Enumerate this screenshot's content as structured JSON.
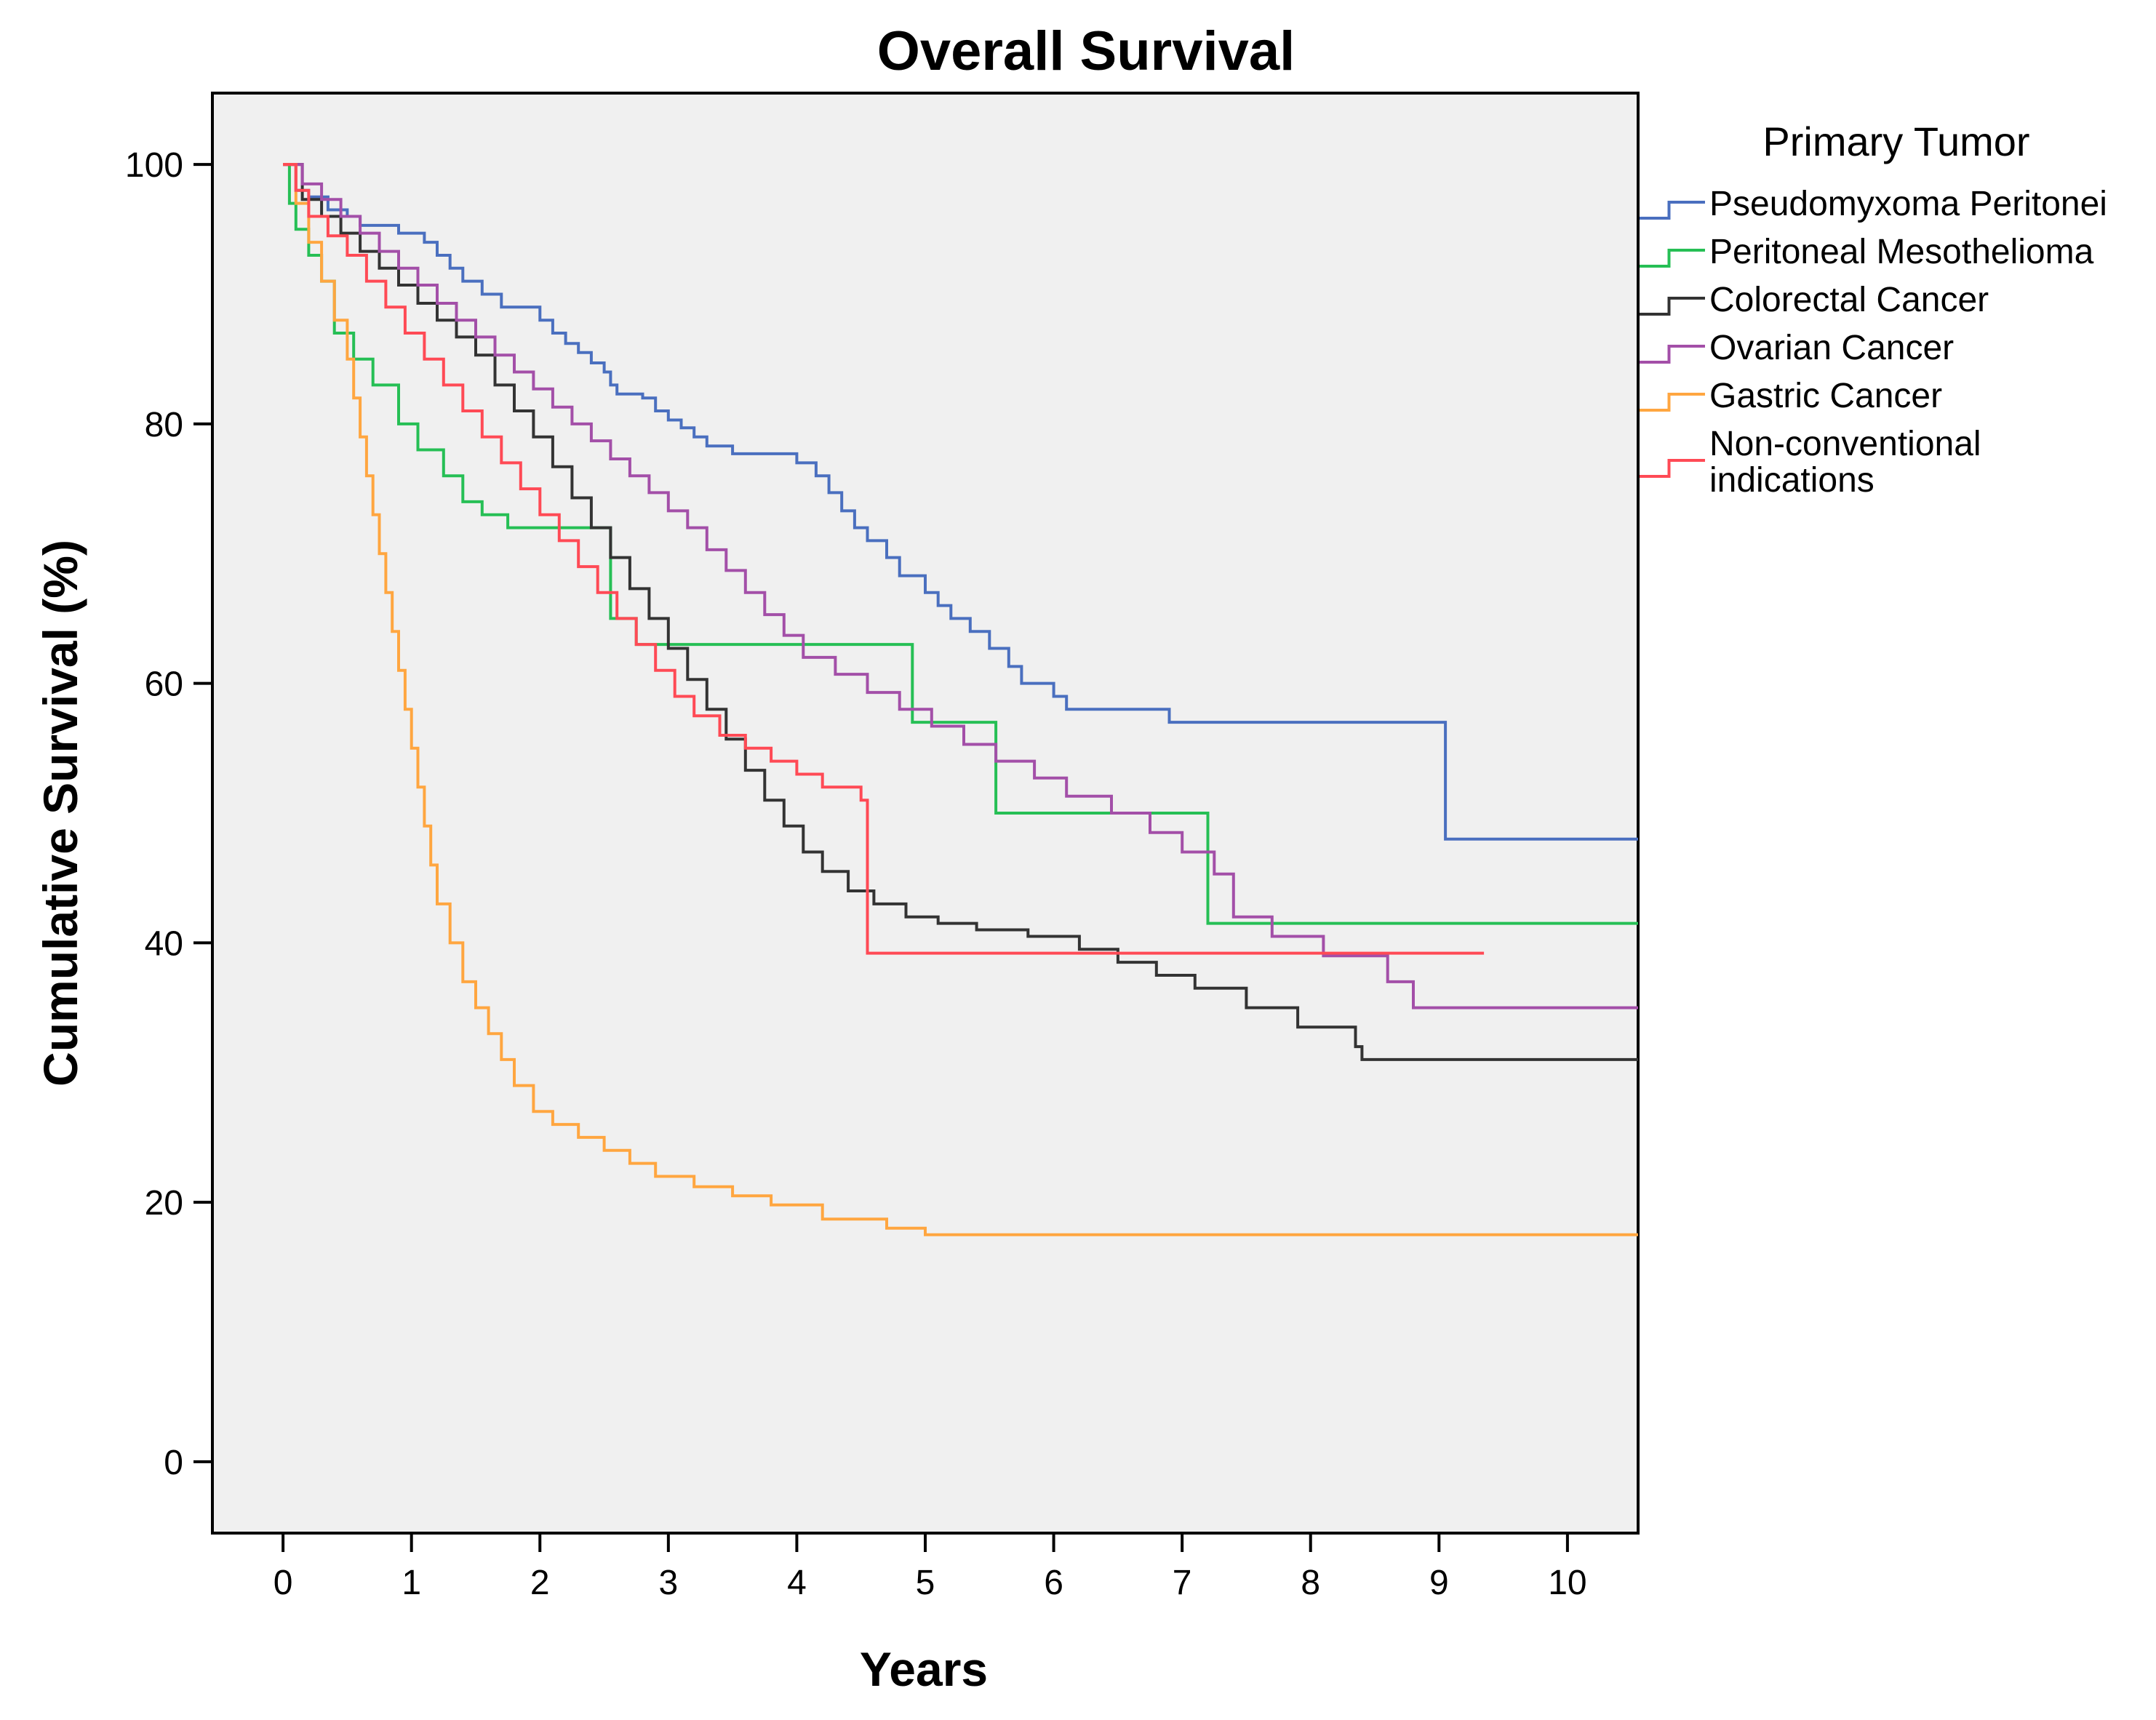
{
  "chart_data": {
    "type": "line",
    "subtype": "kaplan-meier-step",
    "title": "Overall Survival",
    "xlabel": "Years",
    "ylabel": "Cumulative Survival (%)",
    "xlim": [
      -0.55,
      10.55
    ],
    "ylim": [
      -5.5,
      105.5
    ],
    "xticks": [
      0,
      1,
      2,
      3,
      4,
      5,
      6,
      7,
      8,
      9,
      10
    ],
    "yticks": [
      0,
      20,
      40,
      60,
      80,
      100
    ],
    "grid": false,
    "plot_background": "#f0f0f0",
    "legend": {
      "title": "Primary Tumor",
      "position": "right-top"
    },
    "series": [
      {
        "name": "Pseudomyxoma Peritonei",
        "color": "#4a6fbf",
        "points": [
          [
            0,
            100
          ],
          [
            0.1,
            98
          ],
          [
            0.2,
            97.5
          ],
          [
            0.35,
            96.5
          ],
          [
            0.5,
            96
          ],
          [
            0.6,
            95.3
          ],
          [
            0.9,
            94.7
          ],
          [
            1.1,
            94
          ],
          [
            1.2,
            93
          ],
          [
            1.3,
            92
          ],
          [
            1.4,
            91
          ],
          [
            1.55,
            90
          ],
          [
            1.7,
            89
          ],
          [
            2.0,
            88
          ],
          [
            2.1,
            87
          ],
          [
            2.2,
            86.2
          ],
          [
            2.3,
            85.5
          ],
          [
            2.4,
            84.7
          ],
          [
            2.5,
            84
          ],
          [
            2.55,
            83
          ],
          [
            2.6,
            82.3
          ],
          [
            2.8,
            82
          ],
          [
            2.9,
            81
          ],
          [
            3.0,
            80.3
          ],
          [
            3.1,
            79.7
          ],
          [
            3.2,
            79
          ],
          [
            3.3,
            78.3
          ],
          [
            3.5,
            77.7
          ],
          [
            4.0,
            77
          ],
          [
            4.15,
            76
          ],
          [
            4.25,
            74.7
          ],
          [
            4.35,
            73.3
          ],
          [
            4.45,
            72
          ],
          [
            4.55,
            71
          ],
          [
            4.7,
            69.7
          ],
          [
            4.8,
            68.3
          ],
          [
            5.0,
            67
          ],
          [
            5.1,
            66
          ],
          [
            5.2,
            65
          ],
          [
            5.35,
            64
          ],
          [
            5.5,
            62.7
          ],
          [
            5.65,
            61.3
          ],
          [
            5.75,
            60
          ],
          [
            6.0,
            59
          ],
          [
            6.1,
            58
          ],
          [
            6.5,
            58
          ],
          [
            6.8,
            58
          ],
          [
            6.9,
            57
          ],
          [
            8.0,
            57
          ],
          [
            9.0,
            57
          ],
          [
            9.05,
            48
          ],
          [
            10.55,
            48
          ]
        ]
      },
      {
        "name": "Peritoneal Mesothelioma",
        "color": "#26bf55",
        "points": [
          [
            0,
            100
          ],
          [
            0.05,
            97
          ],
          [
            0.1,
            95
          ],
          [
            0.2,
            93
          ],
          [
            0.3,
            91
          ],
          [
            0.4,
            87
          ],
          [
            0.55,
            85
          ],
          [
            0.7,
            83
          ],
          [
            0.9,
            80
          ],
          [
            1.05,
            78
          ],
          [
            1.25,
            76
          ],
          [
            1.4,
            74
          ],
          [
            1.55,
            73
          ],
          [
            1.75,
            72
          ],
          [
            2.5,
            72
          ],
          [
            2.55,
            65
          ],
          [
            2.75,
            63
          ],
          [
            4.85,
            63
          ],
          [
            4.9,
            57
          ],
          [
            5.5,
            57
          ],
          [
            5.55,
            50
          ],
          [
            7.15,
            50
          ],
          [
            7.2,
            41.5
          ],
          [
            10.55,
            41.5
          ]
        ]
      },
      {
        "name": "Colorectal Cancer",
        "color": "#333333",
        "points": [
          [
            0,
            100
          ],
          [
            0.15,
            97.3
          ],
          [
            0.3,
            96
          ],
          [
            0.45,
            94.7
          ],
          [
            0.6,
            93.3
          ],
          [
            0.75,
            92
          ],
          [
            0.9,
            90.7
          ],
          [
            1.05,
            89.3
          ],
          [
            1.2,
            88
          ],
          [
            1.35,
            86.7
          ],
          [
            1.5,
            85.3
          ],
          [
            1.65,
            83
          ],
          [
            1.8,
            81
          ],
          [
            1.95,
            79
          ],
          [
            2.1,
            76.7
          ],
          [
            2.25,
            74.3
          ],
          [
            2.4,
            72
          ],
          [
            2.55,
            69.7
          ],
          [
            2.7,
            67.3
          ],
          [
            2.85,
            65
          ],
          [
            3.0,
            62.7
          ],
          [
            3.15,
            60.3
          ],
          [
            3.3,
            58
          ],
          [
            3.45,
            55.7
          ],
          [
            3.6,
            53.3
          ],
          [
            3.75,
            51
          ],
          [
            3.9,
            49
          ],
          [
            4.05,
            47
          ],
          [
            4.2,
            45.5
          ],
          [
            4.4,
            44
          ],
          [
            4.6,
            43
          ],
          [
            4.85,
            42
          ],
          [
            5.1,
            41.5
          ],
          [
            5.4,
            41
          ],
          [
            5.8,
            40.5
          ],
          [
            6.2,
            39.5
          ],
          [
            6.5,
            38.5
          ],
          [
            6.8,
            37.5
          ],
          [
            7.1,
            36.5
          ],
          [
            7.5,
            35
          ],
          [
            7.9,
            33.5
          ],
          [
            8.35,
            32
          ],
          [
            8.4,
            31
          ],
          [
            10.55,
            31
          ]
        ]
      },
      {
        "name": "Ovarian Cancer",
        "color": "#a34fa8",
        "points": [
          [
            0,
            100
          ],
          [
            0.15,
            98.5
          ],
          [
            0.3,
            97.3
          ],
          [
            0.45,
            96
          ],
          [
            0.6,
            94.7
          ],
          [
            0.75,
            93.3
          ],
          [
            0.9,
            92
          ],
          [
            1.05,
            90.7
          ],
          [
            1.2,
            89.3
          ],
          [
            1.35,
            88
          ],
          [
            1.5,
            86.7
          ],
          [
            1.65,
            85.3
          ],
          [
            1.8,
            84
          ],
          [
            1.95,
            82.7
          ],
          [
            2.1,
            81.3
          ],
          [
            2.25,
            80
          ],
          [
            2.4,
            78.7
          ],
          [
            2.55,
            77.3
          ],
          [
            2.7,
            76
          ],
          [
            2.85,
            74.7
          ],
          [
            3.0,
            73.3
          ],
          [
            3.15,
            72
          ],
          [
            3.3,
            70.3
          ],
          [
            3.45,
            68.7
          ],
          [
            3.6,
            67
          ],
          [
            3.75,
            65.3
          ],
          [
            3.9,
            63.7
          ],
          [
            4.05,
            62
          ],
          [
            4.3,
            60.7
          ],
          [
            4.55,
            59.3
          ],
          [
            4.8,
            58
          ],
          [
            5.05,
            56.7
          ],
          [
            5.3,
            55.3
          ],
          [
            5.55,
            54
          ],
          [
            5.85,
            52.7
          ],
          [
            6.1,
            51.3
          ],
          [
            6.45,
            50
          ],
          [
            6.75,
            48.5
          ],
          [
            7.0,
            47
          ],
          [
            7.25,
            45.3
          ],
          [
            7.4,
            42
          ],
          [
            7.7,
            40.5
          ],
          [
            8.1,
            39
          ],
          [
            8.6,
            37
          ],
          [
            8.8,
            35
          ],
          [
            10.55,
            35
          ]
        ]
      },
      {
        "name": "Gastric Cancer",
        "color": "#ffa640",
        "points": [
          [
            0,
            100
          ],
          [
            0.1,
            97
          ],
          [
            0.2,
            94
          ],
          [
            0.3,
            91
          ],
          [
            0.4,
            88
          ],
          [
            0.5,
            85
          ],
          [
            0.55,
            82
          ],
          [
            0.6,
            79
          ],
          [
            0.65,
            76
          ],
          [
            0.7,
            73
          ],
          [
            0.75,
            70
          ],
          [
            0.8,
            67
          ],
          [
            0.85,
            64
          ],
          [
            0.9,
            61
          ],
          [
            0.95,
            58
          ],
          [
            1.0,
            55
          ],
          [
            1.05,
            52
          ],
          [
            1.1,
            49
          ],
          [
            1.15,
            46
          ],
          [
            1.2,
            43
          ],
          [
            1.3,
            40
          ],
          [
            1.4,
            37
          ],
          [
            1.5,
            35
          ],
          [
            1.6,
            33
          ],
          [
            1.7,
            31
          ],
          [
            1.8,
            29
          ],
          [
            1.95,
            27
          ],
          [
            2.1,
            26
          ],
          [
            2.3,
            25
          ],
          [
            2.5,
            24
          ],
          [
            2.7,
            23
          ],
          [
            2.9,
            22
          ],
          [
            3.2,
            21.2
          ],
          [
            3.5,
            20.5
          ],
          [
            3.8,
            19.8
          ],
          [
            4.2,
            18.7
          ],
          [
            4.7,
            18
          ],
          [
            5.0,
            17.5
          ],
          [
            10.55,
            17.5
          ]
        ]
      },
      {
        "name": "Non-conventional indications",
        "color": "#ff4a55",
        "points": [
          [
            0,
            100
          ],
          [
            0.1,
            98
          ],
          [
            0.2,
            96
          ],
          [
            0.35,
            94.5
          ],
          [
            0.5,
            93
          ],
          [
            0.65,
            91
          ],
          [
            0.8,
            89
          ],
          [
            0.95,
            87
          ],
          [
            1.1,
            85
          ],
          [
            1.25,
            83
          ],
          [
            1.4,
            81
          ],
          [
            1.55,
            79
          ],
          [
            1.7,
            77
          ],
          [
            1.85,
            75
          ],
          [
            2.0,
            73
          ],
          [
            2.15,
            71
          ],
          [
            2.3,
            69
          ],
          [
            2.45,
            67
          ],
          [
            2.6,
            65
          ],
          [
            2.75,
            63
          ],
          [
            2.9,
            61
          ],
          [
            3.05,
            59
          ],
          [
            3.2,
            57.5
          ],
          [
            3.4,
            56
          ],
          [
            3.6,
            55
          ],
          [
            3.8,
            54
          ],
          [
            4.0,
            53
          ],
          [
            4.2,
            52
          ],
          [
            4.5,
            51
          ],
          [
            4.55,
            39.2
          ],
          [
            9.35,
            39.2
          ]
        ]
      }
    ]
  }
}
